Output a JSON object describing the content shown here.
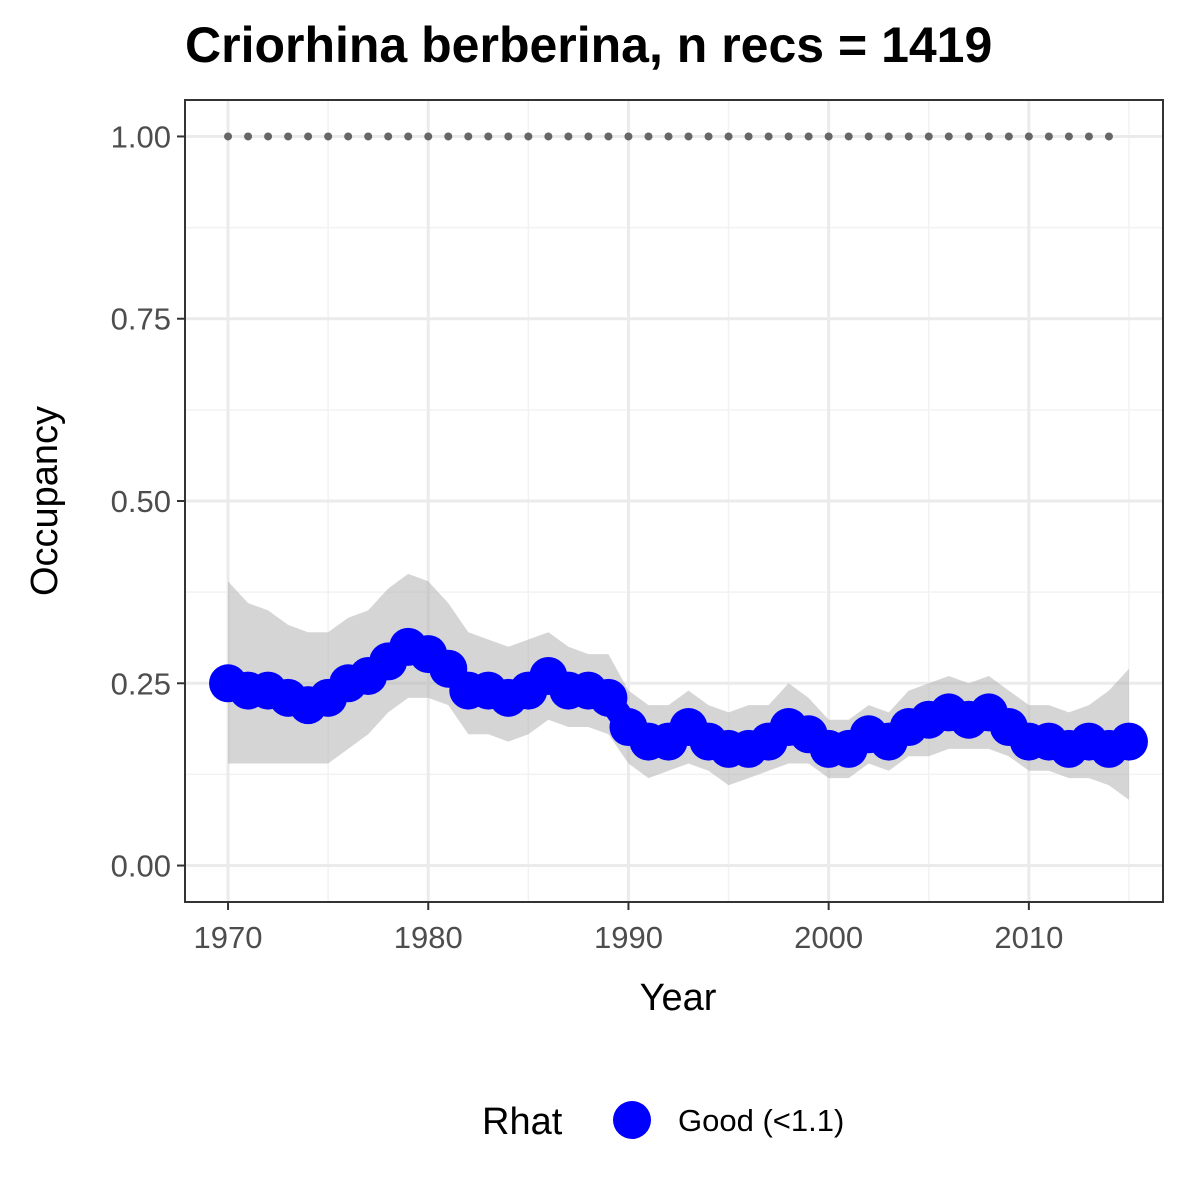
{
  "chart_data": {
    "type": "line",
    "title": "Criorhina berberina, n recs = 1419",
    "xlabel": "Year",
    "ylabel": "Occupancy",
    "xlim": [
      1967.9,
      1017.3
    ],
    "ylim": [
      -0.05,
      1.05
    ],
    "x_ticks": [
      1970,
      1980,
      1990,
      2000,
      2010
    ],
    "x_tick_labels": [
      "1970",
      "1980",
      "1990",
      "2000",
      "2010"
    ],
    "y_ticks": [
      0,
      0.25,
      0.5,
      0.75,
      1.0
    ],
    "y_tick_labels": [
      "0.00",
      "0.25",
      "0.50",
      "0.75",
      "1.00"
    ],
    "grid": true,
    "legend": {
      "position": "bottom",
      "title": "Rhat",
      "entries": [
        {
          "label": "Good (<1.1)",
          "color": "#0000ff"
        }
      ]
    },
    "series": [
      {
        "name": "Good (<1.1)",
        "color": "#0000ff",
        "x": [
          1970,
          1971,
          1972,
          1973,
          1974,
          1975,
          1976,
          1977,
          1978,
          1979,
          1980,
          1981,
          1982,
          1983,
          1984,
          1985,
          1986,
          1987,
          1988,
          1989,
          1990,
          1991,
          1992,
          1993,
          1994,
          1995,
          1996,
          1997,
          1998,
          1999,
          2000,
          2001,
          2002,
          2003,
          2004,
          2005,
          2006,
          2007,
          2008,
          2009,
          2010,
          2011,
          2012,
          2013,
          2014,
          2015
        ],
        "y": [
          0.25,
          0.24,
          0.24,
          0.23,
          0.22,
          0.23,
          0.25,
          0.26,
          0.28,
          0.3,
          0.29,
          0.27,
          0.24,
          0.24,
          0.23,
          0.24,
          0.26,
          0.24,
          0.24,
          0.23,
          0.19,
          0.17,
          0.17,
          0.19,
          0.17,
          0.16,
          0.16,
          0.17,
          0.19,
          0.18,
          0.16,
          0.16,
          0.18,
          0.17,
          0.19,
          0.2,
          0.21,
          0.2,
          0.21,
          0.19,
          0.17,
          0.17,
          0.16,
          0.17,
          0.16,
          0.17
        ],
        "lower": [
          0.14,
          0.14,
          0.14,
          0.14,
          0.14,
          0.14,
          0.16,
          0.18,
          0.21,
          0.23,
          0.23,
          0.22,
          0.18,
          0.18,
          0.17,
          0.18,
          0.2,
          0.19,
          0.19,
          0.18,
          0.14,
          0.12,
          0.13,
          0.14,
          0.13,
          0.11,
          0.12,
          0.13,
          0.14,
          0.14,
          0.12,
          0.12,
          0.14,
          0.13,
          0.15,
          0.15,
          0.16,
          0.16,
          0.16,
          0.15,
          0.13,
          0.13,
          0.12,
          0.12,
          0.11,
          0.09
        ],
        "upper": [
          0.39,
          0.36,
          0.35,
          0.33,
          0.32,
          0.32,
          0.34,
          0.35,
          0.38,
          0.4,
          0.39,
          0.36,
          0.32,
          0.31,
          0.3,
          0.31,
          0.32,
          0.3,
          0.29,
          0.29,
          0.24,
          0.22,
          0.22,
          0.24,
          0.22,
          0.21,
          0.22,
          0.22,
          0.25,
          0.23,
          0.2,
          0.2,
          0.22,
          0.21,
          0.24,
          0.25,
          0.26,
          0.25,
          0.26,
          0.24,
          0.22,
          0.22,
          0.21,
          0.22,
          0.24,
          0.27
        ]
      },
      {
        "name": "",
        "color": "#666666",
        "style": "dotted",
        "x": [
          1970,
          2014
        ],
        "y": [
          1.0,
          1.0
        ]
      }
    ]
  }
}
